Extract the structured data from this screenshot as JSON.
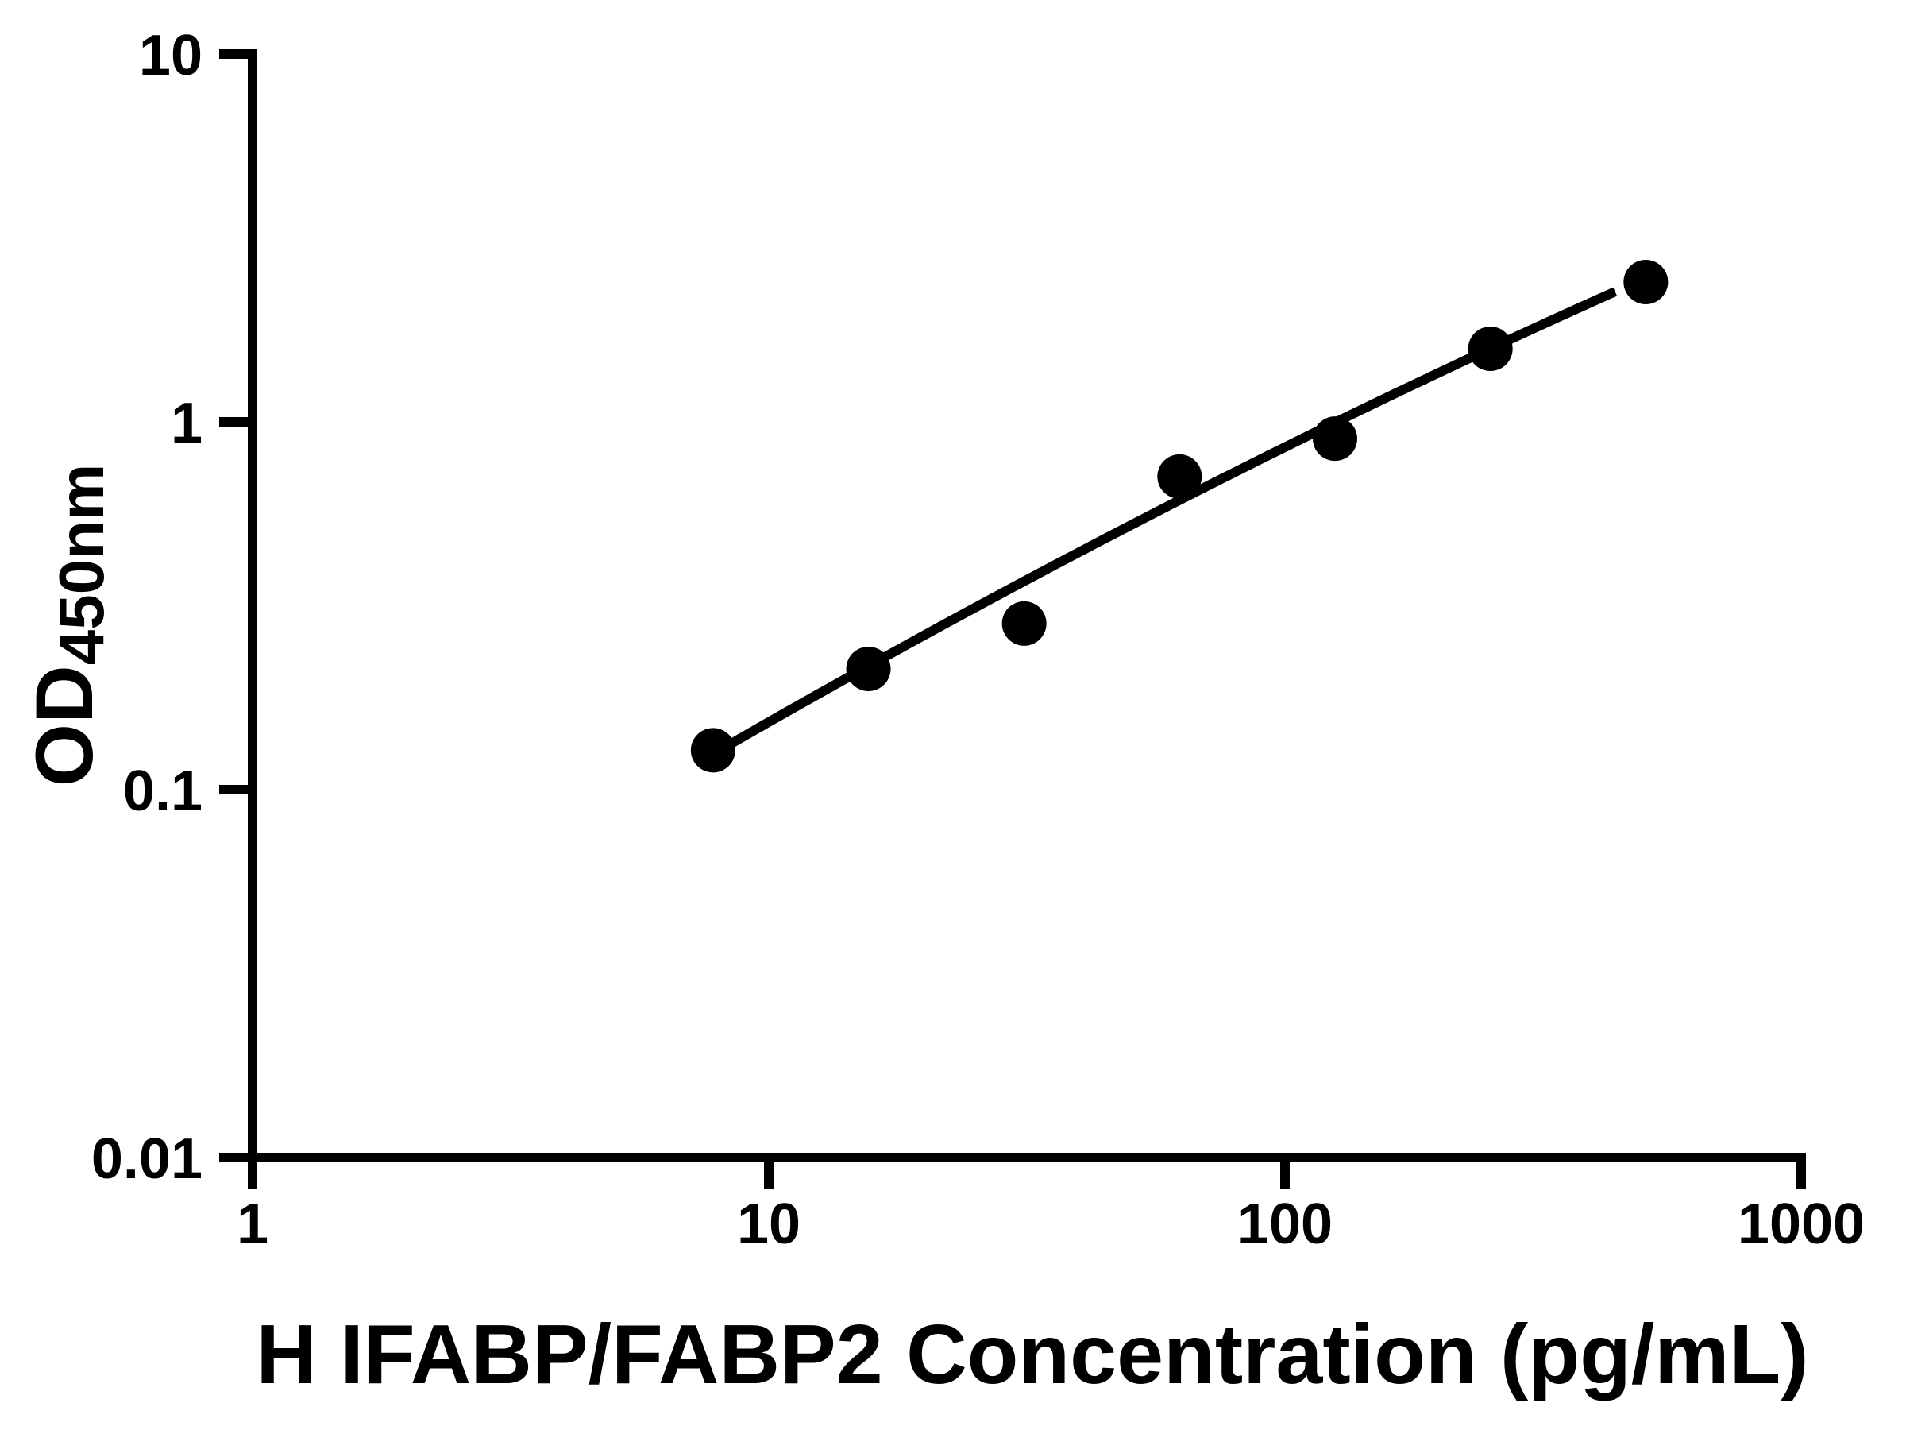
{
  "figure": {
    "background": "#ffffff",
    "ink": "#000000"
  },
  "chart_data": {
    "type": "scatter",
    "subtype": "log-log standard curve with fitted line",
    "title": "",
    "xlabel": "H IFABP/FABP2 Concentration (pg/mL)",
    "ylabel_main": "OD",
    "ylabel_sub": "450nm",
    "x_scale": "log10",
    "y_scale": "log10",
    "xlim": [
      1,
      1000
    ],
    "ylim": [
      0.01,
      10
    ],
    "grid": false,
    "legend": "none",
    "x_ticks": [
      {
        "value": 1,
        "label": "1"
      },
      {
        "value": 10,
        "label": "10"
      },
      {
        "value": 100,
        "label": "100"
      },
      {
        "value": 1000,
        "label": "1000"
      }
    ],
    "y_ticks": [
      {
        "value": 10,
        "label": "10"
      },
      {
        "value": 1,
        "label": "1"
      },
      {
        "value": 0.1,
        "label": "0.1"
      },
      {
        "value": 0.01,
        "label": "0.01"
      }
    ],
    "series": [
      {
        "name": "standard-curve-points",
        "marker": "filled-circle",
        "color": "#000000",
        "points": [
          {
            "conc": 7.8,
            "od": 0.128
          },
          {
            "conc": 15.6,
            "od": 0.213
          },
          {
            "conc": 31.25,
            "od": 0.283
          },
          {
            "conc": 62.5,
            "od": 0.71
          },
          {
            "conc": 125,
            "od": 0.9
          },
          {
            "conc": 250,
            "od": 1.58
          },
          {
            "conc": 500,
            "od": 2.4
          }
        ]
      }
    ],
    "fit_curve": {
      "shape": "quadratic-bezier",
      "color": "#000000",
      "start": {
        "conc": 8.5,
        "od": 0.134
      },
      "control": {
        "conc": 61.3,
        "od": 0.66
      },
      "end": {
        "conc": 436,
        "od": 2.26
      }
    }
  }
}
